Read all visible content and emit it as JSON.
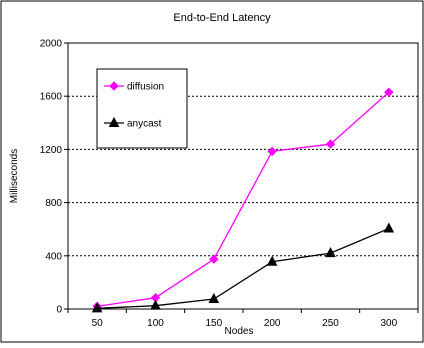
{
  "chart_data": {
    "type": "line",
    "title": "End-to-End Latency",
    "xlabel": "Nodes",
    "ylabel": "Milliseconds",
    "x": [
      50,
      100,
      150,
      200,
      250,
      300
    ],
    "ylim": [
      0,
      2000
    ],
    "yticks": [
      0,
      400,
      800,
      1200,
      1600,
      2000
    ],
    "grid": "horizontal dotted",
    "legend": "top-left",
    "series": [
      {
        "name": "diffusion",
        "color": "#ff00ff",
        "marker": "diamond",
        "values": [
          20,
          85,
          375,
          1185,
          1240,
          1630
        ]
      },
      {
        "name": "anycast",
        "color": "#000000",
        "marker": "triangle",
        "values": [
          5,
          25,
          75,
          355,
          420,
          605
        ]
      }
    ]
  }
}
